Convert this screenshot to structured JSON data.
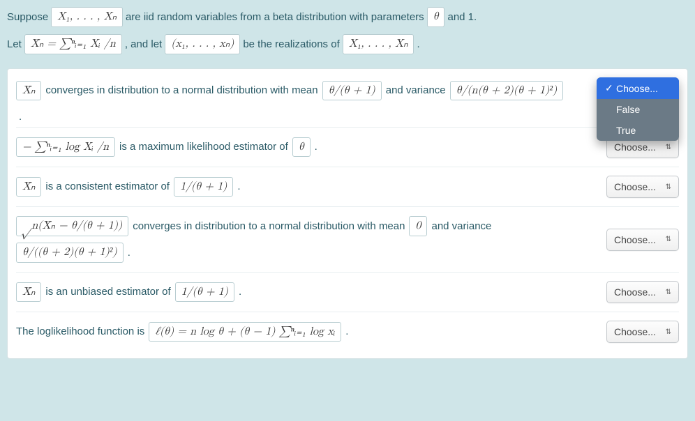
{
  "intro": {
    "suppose": "Suppose",
    "vars": "X₁, . . . , Xₙ",
    "iid": "are iid random variables from a beta distribution with parameters",
    "theta": "θ",
    "and1": "and 1.",
    "let": "Let",
    "xbar_def": "X̄ₙ = ∑ⁿᵢ₌₁ Xᵢ /n",
    "andlet": ", and let",
    "realz": "(x₁, . . . , xₙ)",
    "be": "be the realizations of",
    "vars2": "X₁, . . . , Xₙ",
    "dot": "."
  },
  "questions": [
    {
      "parts": [
        {
          "t": "math",
          "v": "X̄ₙ"
        },
        {
          "t": "txt",
          "v": "converges in distribution to a normal distribution with mean"
        },
        {
          "t": "math",
          "v": "θ/(θ + 1)"
        },
        {
          "t": "txt",
          "v": "and variance"
        },
        {
          "t": "math",
          "v": "θ/(n(θ + 2)(θ + 1)²)"
        }
      ],
      "trail_dot": true,
      "open": true
    },
    {
      "parts": [
        {
          "t": "math",
          "v": "− ∑ⁿᵢ₌₁ log Xᵢ /n"
        },
        {
          "t": "txt",
          "v": "is a maximum likelihood estimator of"
        },
        {
          "t": "math",
          "v": "θ"
        },
        {
          "t": "txt",
          "v": "."
        }
      ]
    },
    {
      "parts": [
        {
          "t": "math",
          "v": "X̄ₙ"
        },
        {
          "t": "txt",
          "v": "is a consistent estimator of"
        },
        {
          "t": "math",
          "v": "1/(θ + 1)"
        },
        {
          "t": "txt",
          "v": "."
        }
      ]
    },
    {
      "parts": [
        {
          "t": "math",
          "v": "√n(X̄ₙ − θ/(θ + 1))"
        },
        {
          "t": "txt",
          "v": "converges in distribution to a normal distribution with mean"
        },
        {
          "t": "math",
          "v": "0"
        },
        {
          "t": "txt",
          "v": "and variance"
        },
        {
          "t": "math",
          "v": "θ/((θ + 2)(θ + 1)²)"
        },
        {
          "t": "txt",
          "v": "."
        }
      ]
    },
    {
      "parts": [
        {
          "t": "math",
          "v": "X̄ₙ"
        },
        {
          "t": "txt",
          "v": "is an unbiased estimator of"
        },
        {
          "t": "math",
          "v": "1/(θ + 1)"
        },
        {
          "t": "txt",
          "v": "."
        }
      ]
    },
    {
      "parts": [
        {
          "t": "txt",
          "v": "The loglikelihood function is"
        },
        {
          "t": "math",
          "v": "ℓ(θ) = n log θ + (θ − 1) ∑ⁿᵢ₌₁ log xᵢ"
        },
        {
          "t": "txt",
          "v": "."
        }
      ]
    }
  ],
  "choose_label": "Choose...",
  "dropdown_options": [
    "Choose...",
    "False",
    "True"
  ],
  "dropdown_selected": "Choose..."
}
